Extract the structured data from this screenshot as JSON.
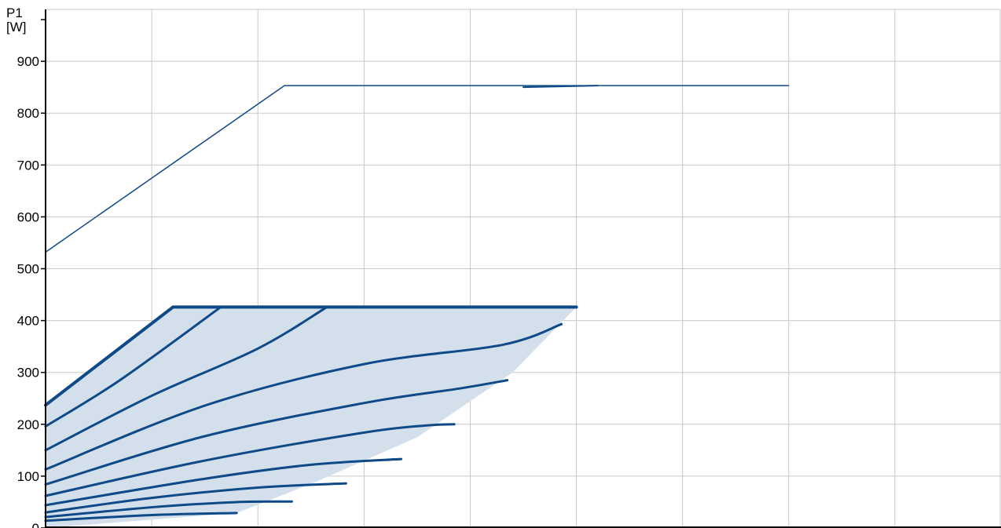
{
  "chart_data": {
    "type": "line",
    "title": "",
    "ylabel_name": "P1",
    "ylabel_unit": "[W]",
    "xlabel": "",
    "ylim": [
      0,
      1000
    ],
    "xlim": [
      0,
      9
    ],
    "x_gridlines": 9,
    "y_ticks": [
      0,
      100,
      200,
      300,
      400,
      500,
      600,
      700,
      800,
      900
    ],
    "y_tick_labels": [
      "0",
      "100",
      "200",
      "300",
      "400",
      "500",
      "600",
      "700",
      "800",
      "900"
    ],
    "grid": true,
    "colors": {
      "curve": "#0d4a87",
      "fill": "#d3dfea",
      "grid": "#c8c8c8",
      "axis": "#000000"
    },
    "series": [
      {
        "values": [
          [
            0,
            532
          ],
          [
            2.25,
            853
          ],
          [
            7,
            853
          ]
        ]
      },
      {
        "values": [
          [
            4.5,
            850
          ],
          [
            5.2,
            853
          ]
        ]
      },
      {
        "values": [
          [
            0,
            237
          ],
          [
            1.2,
            426
          ],
          [
            5,
            426
          ]
        ]
      },
      {
        "values": [
          [
            0,
            196
          ],
          [
            0.7,
            285
          ],
          [
            1.65,
            426
          ]
        ]
      },
      {
        "values": [
          [
            0,
            150
          ],
          [
            1,
            255
          ],
          [
            2,
            346
          ],
          [
            2.65,
            426
          ]
        ]
      },
      {
        "values": [
          [
            0,
            113
          ],
          [
            1.5,
            236
          ],
          [
            3,
            316
          ],
          [
            4.3,
            353
          ],
          [
            4.86,
            393
          ]
        ]
      },
      {
        "values": [
          [
            0,
            84
          ],
          [
            1.5,
            177
          ],
          [
            3,
            241
          ],
          [
            3.9,
            269
          ],
          [
            4.35,
            285
          ]
        ]
      },
      {
        "values": [
          [
            0,
            62
          ],
          [
            1.5,
            130
          ],
          [
            3,
            184
          ],
          [
            3.6,
            198
          ],
          [
            3.85,
            200
          ]
        ]
      },
      {
        "values": [
          [
            0,
            44
          ],
          [
            1.5,
            95
          ],
          [
            2.5,
            122
          ],
          [
            3.35,
            133
          ]
        ]
      },
      {
        "values": [
          [
            0,
            30
          ],
          [
            1,
            58
          ],
          [
            2,
            78
          ],
          [
            2.83,
            86
          ]
        ]
      },
      {
        "values": [
          [
            0,
            21
          ],
          [
            1,
            40
          ],
          [
            1.8,
            50
          ],
          [
            2.32,
            51
          ]
        ]
      },
      {
        "values": [
          [
            0,
            14
          ],
          [
            1,
            25
          ],
          [
            1.8,
            29
          ]
        ]
      }
    ],
    "envelope": [
      [
        0,
        237
      ],
      [
        1.2,
        426
      ],
      [
        5,
        426
      ],
      [
        4.4,
        300
      ],
      [
        3.5,
        175
      ],
      [
        2.5,
        85
      ],
      [
        1.8,
        29
      ],
      [
        0,
        0
      ]
    ]
  }
}
